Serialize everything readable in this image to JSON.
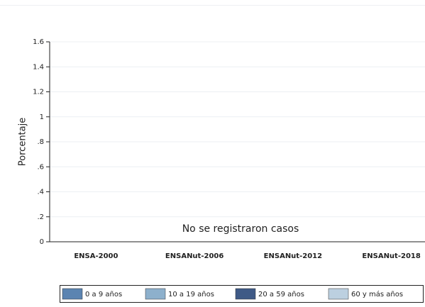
{
  "chart_data": {
    "type": "bar",
    "y_label": "Porcentaje",
    "annotation": "No se registraron casos",
    "categories": [
      "ENSA-2000",
      "ENSANut-2006",
      "ENSANut-2012",
      "ENSANut-2018"
    ],
    "series": [
      {
        "name": "0 a 9 años",
        "color": "#5b84b1",
        "values": [
          0,
          0,
          0,
          0
        ]
      },
      {
        "name": "10 a 19 años",
        "color": "#8db0cc",
        "values": [
          0,
          0,
          0,
          0
        ]
      },
      {
        "name": "20 a 59 años",
        "color": "#3f5a86",
        "values": [
          0,
          0,
          0,
          0
        ]
      },
      {
        "name": "60 y más años",
        "color": "#bcd0e0",
        "values": [
          0,
          0,
          0,
          0
        ]
      }
    ],
    "ylim": [
      0,
      1.6
    ],
    "yticks": [
      0,
      {
        "value": 0.2,
        "label": ".2"
      },
      {
        "value": 0.4,
        "label": ".4"
      },
      {
        "value": 0.6,
        "label": ".6"
      },
      {
        "value": 0.8,
        "label": ".8"
      },
      1,
      1.2,
      1.4,
      1.6
    ],
    "grid": true
  }
}
